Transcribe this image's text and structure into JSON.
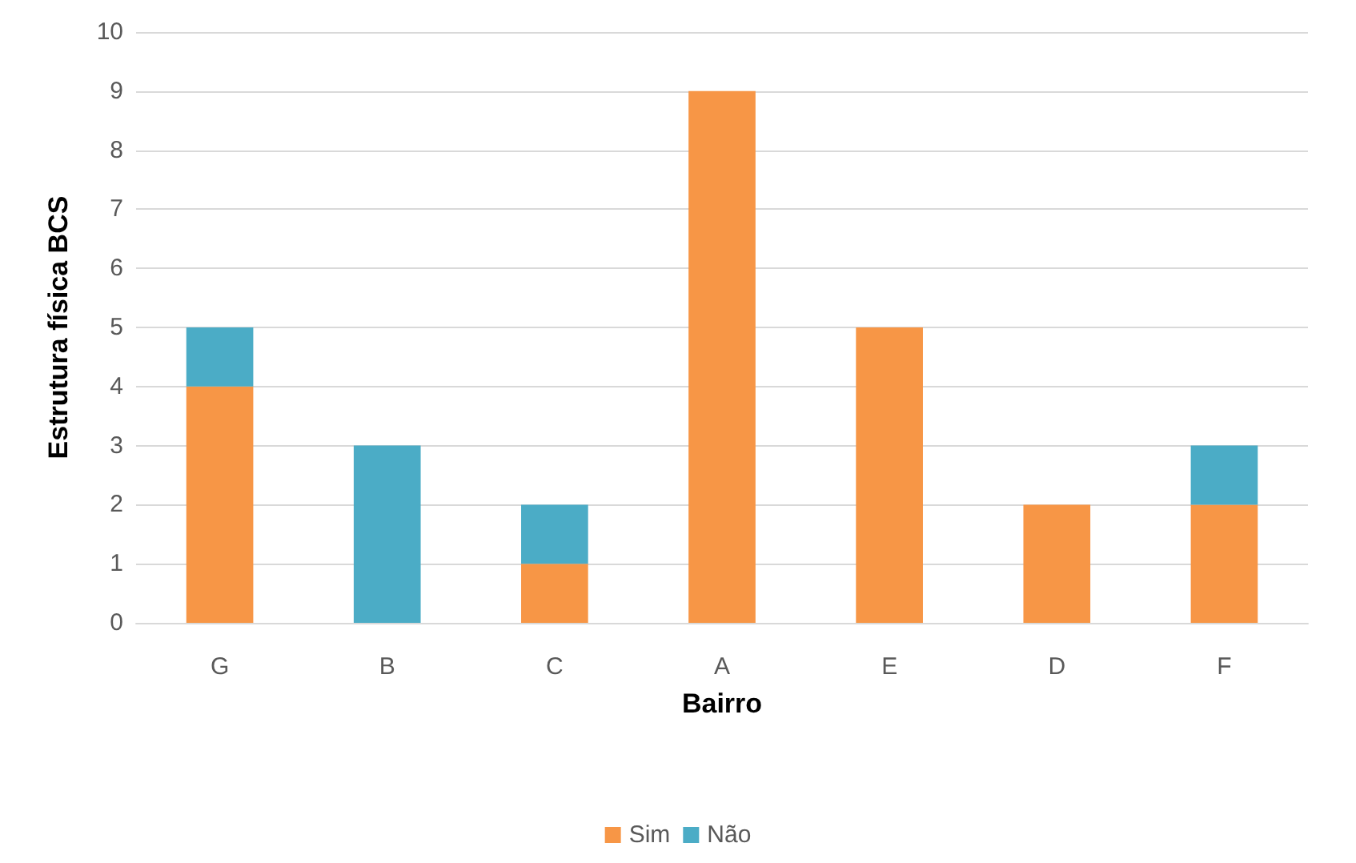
{
  "chart_data": {
    "type": "bar",
    "xlabel": "Bairro",
    "ylabel": "Estrutura física BCS",
    "categories": [
      "G",
      "B",
      "C",
      "A",
      "E",
      "D",
      "F"
    ],
    "series": [
      {
        "name": "Sim",
        "color": "#f79646",
        "values": [
          4,
          0,
          1,
          9,
          5,
          2,
          2
        ]
      },
      {
        "name": "Não",
        "color": "#4bacc6",
        "values": [
          1,
          3,
          1,
          0,
          0,
          0,
          1
        ]
      }
    ],
    "stacked": true,
    "ylim": [
      0,
      10
    ],
    "yticks": [
      0,
      1,
      2,
      3,
      4,
      5,
      6,
      7,
      8,
      9,
      10
    ],
    "grid": "y",
    "legend": "bottom"
  }
}
